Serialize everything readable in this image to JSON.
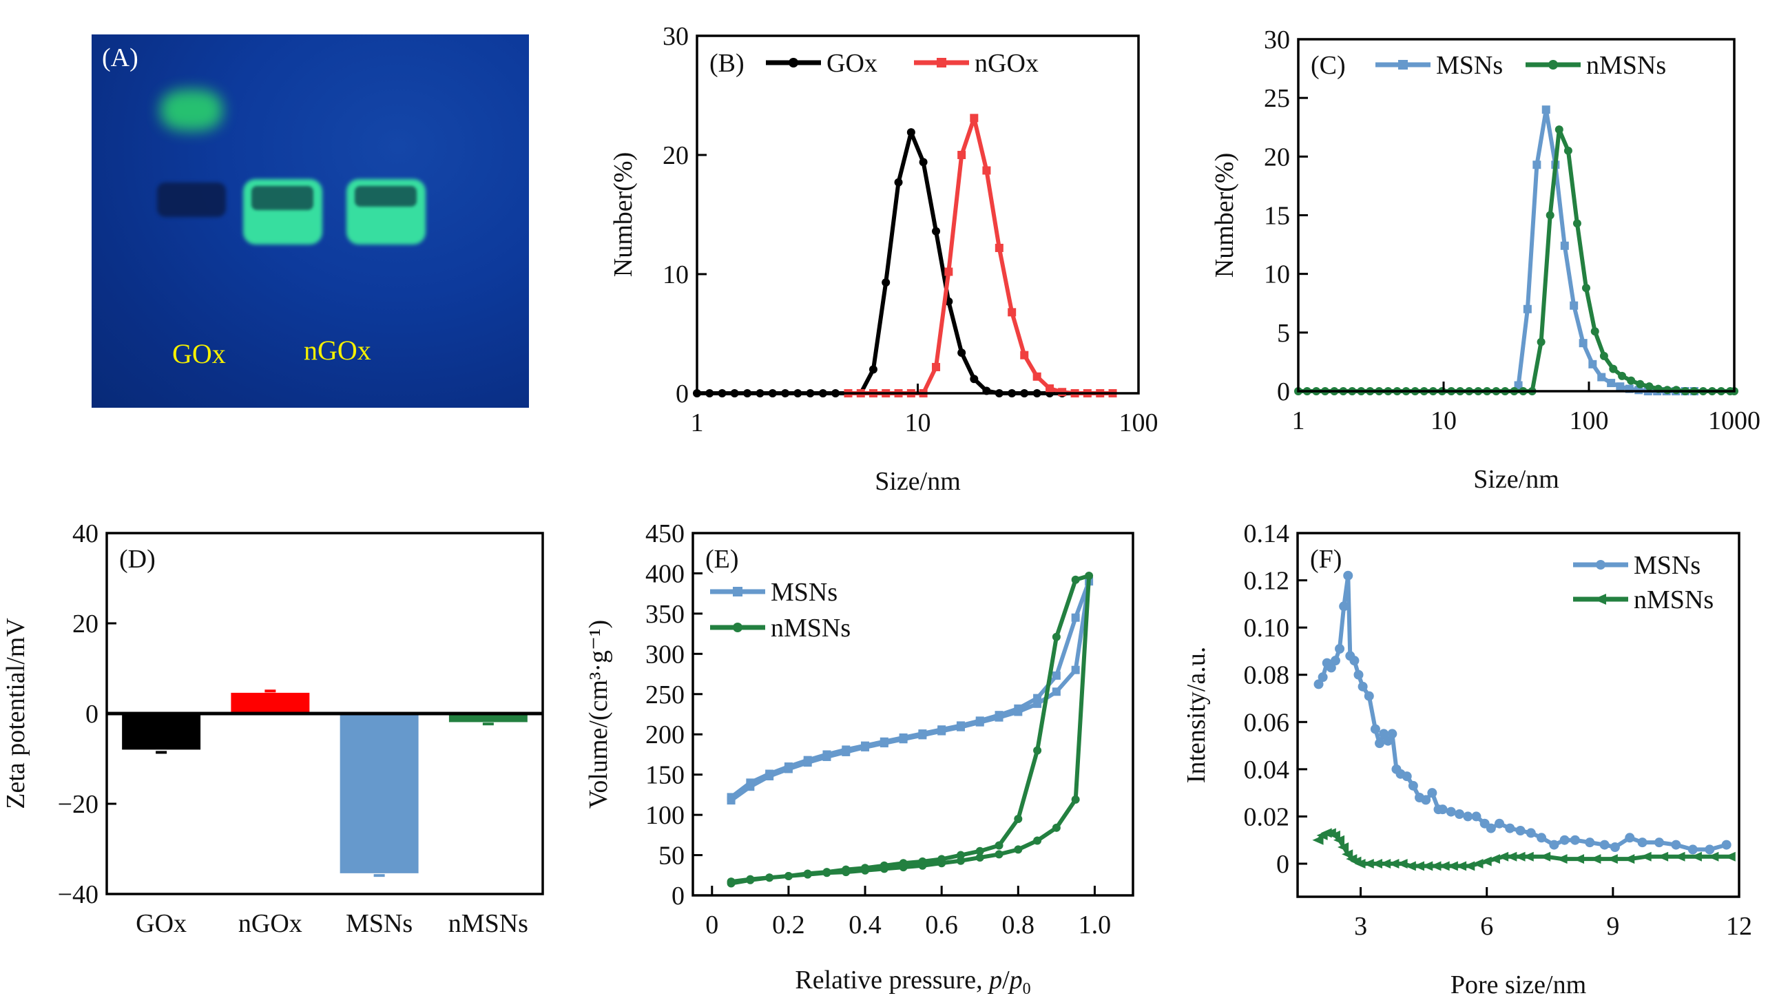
{
  "figure": {
    "panel_a": {
      "label": "(A)",
      "lanes": [
        "GOx",
        "nGOx"
      ],
      "description": "Native gel electrophoresis under UV light"
    }
  },
  "chart_data": [
    {
      "id": "B",
      "type": "line",
      "panel_label": "(B)",
      "xscale": "log",
      "xlim": [
        1,
        100
      ],
      "ylim": [
        0,
        30
      ],
      "xticks": [
        1,
        10,
        100
      ],
      "xtick_labels": [
        "1",
        "10",
        "100"
      ],
      "yticks": [
        0,
        10,
        20,
        30
      ],
      "ytick_labels": [
        "0",
        "10",
        "20",
        "30"
      ],
      "xlabel": "Size/nm",
      "ylabel": "Number(%)",
      "legend": "top",
      "series": [
        {
          "name": "GOx",
          "color": "#000000",
          "marker": "circle",
          "x": [
            1.0,
            1.14,
            1.3,
            1.48,
            1.69,
            1.93,
            2.2,
            2.51,
            2.86,
            3.26,
            3.72,
            4.24,
            4.84,
            5.52,
            6.29,
            7.17,
            8.18,
            9.33,
            10.6,
            12.1,
            13.8,
            15.8,
            18.0,
            20.5,
            23.4,
            26.7,
            30.4,
            34.7,
            39.6,
            45.1,
            51.5,
            58.7,
            67.0,
            76.4
          ],
          "y": [
            0,
            0,
            0,
            0,
            0,
            0,
            0,
            0,
            0,
            0,
            0,
            0,
            0,
            0,
            2.0,
            9.3,
            17.7,
            21.9,
            19.4,
            13.6,
            7.7,
            3.4,
            1.2,
            0.2,
            0,
            0,
            0,
            0,
            0,
            0,
            0,
            0,
            0,
            0
          ]
        },
        {
          "name": "nGOx",
          "color": "#f04040",
          "marker": "square",
          "x": [
            4.84,
            5.52,
            6.29,
            7.17,
            8.18,
            9.33,
            10.6,
            12.1,
            13.8,
            15.8,
            18.0,
            20.5,
            23.4,
            26.7,
            30.4,
            34.7,
            39.6,
            45.1,
            51.5,
            58.7,
            67.0,
            76.4
          ],
          "y": [
            0,
            0,
            0,
            0,
            0,
            0,
            0,
            2.2,
            10.2,
            20.0,
            23.1,
            18.7,
            12.2,
            6.8,
            3.2,
            1.4,
            0.4,
            0.1,
            0,
            0,
            0,
            0
          ]
        }
      ]
    },
    {
      "id": "C",
      "type": "line",
      "panel_label": "(C)",
      "xscale": "log",
      "xlim": [
        1,
        1000
      ],
      "ylim": [
        0,
        30
      ],
      "xticks": [
        1,
        10,
        100,
        1000
      ],
      "xtick_labels": [
        "1",
        "10",
        "100",
        "1000"
      ],
      "yticks": [
        0,
        5,
        10,
        15,
        20,
        25,
        30
      ],
      "ytick_labels": [
        "0",
        "5",
        "10",
        "15",
        "20",
        "25",
        "30"
      ],
      "xlabel": "Size/nm",
      "ylabel": "Number(%)",
      "legend": "top",
      "series": [
        {
          "name": "MSNs",
          "color": "#6699cc",
          "marker": "square",
          "x": [
            32.7,
            37.8,
            43.8,
            50.7,
            58.8,
            68.1,
            78.8,
            91.3,
            106,
            122,
            142,
            164,
            190,
            220,
            255,
            295,
            342,
            396,
            459,
            531
          ],
          "y": [
            0.5,
            7.0,
            19.3,
            24.0,
            19.3,
            12.4,
            7.3,
            4.1,
            2.3,
            1.2,
            0.7,
            0.4,
            0.2,
            0.1,
            0,
            0,
            0,
            0,
            0,
            0
          ]
        },
        {
          "name": "nMSNs",
          "color": "#238040",
          "marker": "circle",
          "x": [
            1.0,
            1.15,
            1.33,
            1.53,
            1.77,
            2.04,
            2.35,
            2.71,
            3.12,
            3.6,
            4.15,
            4.79,
            5.52,
            6.37,
            7.34,
            8.47,
            9.77,
            11.3,
            13.0,
            15.0,
            17.3,
            19.9,
            23.0,
            26.5,
            30.6,
            35.3,
            40.7,
            46.9,
            54.1,
            62.4,
            72.0,
            83.0,
            95.7,
            110,
            127,
            147,
            169,
            195,
            225,
            260,
            300,
            346,
            399,
            460,
            530,
            611,
            705,
            813,
            938,
            1000
          ],
          "y": [
            0,
            0,
            0,
            0,
            0,
            0,
            0,
            0,
            0,
            0,
            0,
            0,
            0,
            0,
            0,
            0,
            0,
            0,
            0,
            0,
            0,
            0,
            0,
            0,
            0,
            0,
            0,
            4.2,
            15.0,
            22.3,
            20.5,
            14.3,
            8.8,
            5.1,
            3.0,
            1.9,
            1.3,
            0.9,
            0.6,
            0.4,
            0.2,
            0.1,
            0.1,
            0,
            0,
            0,
            0,
            0,
            0,
            0
          ]
        }
      ]
    },
    {
      "id": "D",
      "type": "bar",
      "panel_label": "(D)",
      "categories": [
        "GOx",
        "nGOx",
        "MSNs",
        "nMSNs"
      ],
      "values": [
        -8.0,
        4.6,
        -35.4,
        -1.9
      ],
      "errors": [
        0.6,
        0.4,
        0.5,
        0.4
      ],
      "colors": [
        "#000000",
        "#ff0000",
        "#6699cc",
        "#238040"
      ],
      "ylim": [
        -40,
        40
      ],
      "yticks": [
        -40,
        -20,
        0,
        20,
        40
      ],
      "ytick_labels": [
        "−40",
        "−20",
        "0",
        "20",
        "40"
      ],
      "xlabel": "",
      "ylabel": "Zeta potential/mV"
    },
    {
      "id": "E",
      "type": "line",
      "panel_label": "(E)",
      "xlim": [
        -0.05,
        1.1
      ],
      "ylim": [
        0,
        450
      ],
      "xticks": [
        0,
        0.2,
        0.4,
        0.6,
        0.8,
        1.0
      ],
      "xtick_labels": [
        "0",
        "0.2",
        "0.4",
        "0.6",
        "0.8",
        "1.0"
      ],
      "yticks": [
        0,
        50,
        100,
        150,
        200,
        250,
        300,
        350,
        400,
        450
      ],
      "ytick_labels": [
        "0",
        "50",
        "100",
        "150",
        "200",
        "250",
        "300",
        "350",
        "400",
        "450"
      ],
      "xlabel": "Relative pressure, p/p0",
      "xlabel_parts": [
        "Relative pressure, ",
        "p",
        "/",
        "p",
        "0"
      ],
      "ylabel": "Volume/(cm³·g⁻¹)",
      "legend": "top-left",
      "series": [
        {
          "name": "MSNs",
          "color": "#6699cc",
          "marker": "square",
          "x": [
            0.05,
            0.1,
            0.15,
            0.2,
            0.25,
            0.3,
            0.35,
            0.4,
            0.45,
            0.5,
            0.55,
            0.6,
            0.65,
            0.7,
            0.75,
            0.8,
            0.85,
            0.9,
            0.95,
            0.985,
            0.95,
            0.9,
            0.85,
            0.8,
            0.75,
            0.7,
            0.65,
            0.6,
            0.55,
            0.5,
            0.45,
            0.4,
            0.35,
            0.3,
            0.25,
            0.2,
            0.15,
            0.1,
            0.05
          ],
          "y": [
            118,
            135,
            148,
            157,
            165,
            172,
            178,
            184,
            189,
            194,
            199,
            204,
            209,
            215,
            221,
            228,
            238,
            253,
            280,
            390,
            345,
            273,
            245,
            232,
            224,
            217,
            211,
            206,
            201,
            196,
            191,
            186,
            181,
            175,
            168,
            160,
            151,
            140,
            122
          ]
        },
        {
          "name": "nMSNs",
          "color": "#238040",
          "marker": "circle",
          "x": [
            0.05,
            0.1,
            0.15,
            0.2,
            0.25,
            0.3,
            0.35,
            0.4,
            0.45,
            0.5,
            0.55,
            0.6,
            0.65,
            0.7,
            0.75,
            0.8,
            0.85,
            0.9,
            0.95,
            0.985,
            0.95,
            0.9,
            0.85,
            0.8,
            0.75,
            0.7,
            0.65,
            0.6,
            0.55,
            0.5,
            0.45,
            0.4,
            0.35,
            0.3,
            0.25,
            0.2,
            0.15,
            0.1,
            0.05
          ],
          "y": [
            15,
            19,
            22,
            24,
            26,
            28,
            29,
            31,
            33,
            35,
            37,
            40,
            43,
            47,
            51,
            57,
            68,
            84,
            119,
            397,
            392,
            321,
            180,
            95,
            62,
            55,
            50,
            45,
            42,
            40,
            37,
            34,
            32,
            29,
            27,
            24,
            22,
            20,
            17
          ]
        }
      ]
    },
    {
      "id": "F",
      "type": "line",
      "panel_label": "(F)",
      "xlim": [
        1.5,
        12
      ],
      "ylim": [
        -0.014,
        0.14
      ],
      "xticks": [
        3,
        6,
        9,
        12
      ],
      "xtick_labels": [
        "3",
        "6",
        "9",
        "12"
      ],
      "yticks": [
        0,
        0.02,
        0.04,
        0.06,
        0.08,
        0.1,
        0.12,
        0.14
      ],
      "ytick_labels": [
        "0",
        "0.02",
        "0.04",
        "0.06",
        "0.08",
        "0.10",
        "0.12",
        "0.14"
      ],
      "xlabel": "Pore size/nm",
      "ylabel": "Intensity/a.u.",
      "legend": "top-right",
      "series": [
        {
          "name": "MSNs",
          "color": "#6699cc",
          "marker": "circle",
          "x": [
            2.0,
            2.1,
            2.2,
            2.3,
            2.4,
            2.5,
            2.6,
            2.7,
            2.75,
            2.85,
            2.95,
            3.05,
            3.2,
            3.35,
            3.45,
            3.55,
            3.65,
            3.75,
            3.85,
            3.95,
            4.1,
            4.25,
            4.4,
            4.55,
            4.7,
            4.85,
            4.95,
            5.15,
            5.35,
            5.55,
            5.75,
            5.95,
            6.1,
            6.3,
            6.55,
            6.8,
            7.05,
            7.3,
            7.6,
            7.85,
            8.1,
            8.45,
            8.8,
            9.05,
            9.4,
            9.7,
            10.1,
            10.5,
            10.9,
            11.3,
            11.7
          ],
          "y": [
            0.076,
            0.079,
            0.085,
            0.083,
            0.086,
            0.091,
            0.109,
            0.122,
            0.088,
            0.086,
            0.08,
            0.075,
            0.071,
            0.057,
            0.051,
            0.055,
            0.052,
            0.055,
            0.04,
            0.038,
            0.037,
            0.033,
            0.028,
            0.027,
            0.03,
            0.023,
            0.023,
            0.022,
            0.021,
            0.02,
            0.02,
            0.017,
            0.015,
            0.017,
            0.015,
            0.014,
            0.013,
            0.011,
            0.008,
            0.01,
            0.01,
            0.009,
            0.008,
            0.007,
            0.011,
            0.009,
            0.009,
            0.008,
            0.006,
            0.006,
            0.008
          ]
        },
        {
          "name": "nMSNs",
          "color": "#238040",
          "marker": "triangle-left",
          "x": [
            2.0,
            2.1,
            2.2,
            2.3,
            2.4,
            2.5,
            2.6,
            2.7,
            2.8,
            2.9,
            3.0,
            3.2,
            3.4,
            3.6,
            3.8,
            4.0,
            4.2,
            4.4,
            4.6,
            4.8,
            5.0,
            5.2,
            5.4,
            5.6,
            5.8,
            6.0,
            6.2,
            6.4,
            6.6,
            6.8,
            7.0,
            7.4,
            7.8,
            8.2,
            8.6,
            9.0,
            9.4,
            9.8,
            10.2,
            10.6,
            11.0,
            11.4,
            11.8
          ],
          "y": [
            0.01,
            0.012,
            0.013,
            0.013,
            0.012,
            0.01,
            0.007,
            0.004,
            0.002,
            0.001,
            0.0,
            0.0,
            0.0,
            0.0,
            0.0,
            0.0,
            -0.001,
            -0.001,
            -0.001,
            -0.001,
            -0.001,
            -0.001,
            -0.001,
            -0.001,
            0.0,
            0.001,
            0.002,
            0.003,
            0.003,
            0.003,
            0.003,
            0.003,
            0.002,
            0.002,
            0.002,
            0.002,
            0.002,
            0.003,
            0.003,
            0.003,
            0.003,
            0.003,
            0.003
          ]
        }
      ]
    }
  ]
}
